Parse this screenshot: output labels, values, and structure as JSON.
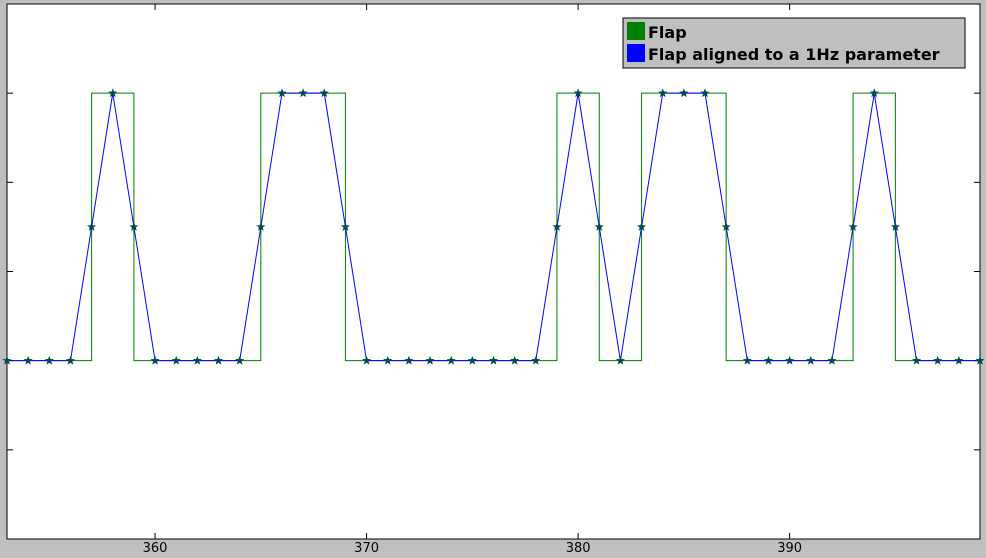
{
  "chart_data": {
    "type": "line",
    "xlim": [
      353,
      399
    ],
    "ylim": [
      -1,
      2
    ],
    "x_ticks": [
      360,
      370,
      380,
      390
    ],
    "x_tick_labels": [
      "360",
      "370",
      "380",
      "390"
    ],
    "y_ticks": [
      -1,
      -0.5,
      0,
      0.5,
      1,
      1.5,
      2
    ],
    "grid": false,
    "legend_position": "top-right",
    "series": [
      {
        "name": "Flap",
        "color": "#008000",
        "style": "step",
        "x": [
          353,
          357,
          357,
          359,
          359,
          365,
          365,
          369,
          369,
          379,
          379,
          381,
          381,
          383,
          383,
          387,
          387,
          393,
          393,
          395,
          395,
          399
        ],
        "y": [
          0,
          0,
          1.5,
          1.5,
          0,
          0,
          1.5,
          1.5,
          0,
          0,
          1.5,
          1.5,
          0,
          0,
          1.5,
          1.5,
          0,
          0,
          1.5,
          1.5,
          0,
          0
        ]
      },
      {
        "name": "Flap aligned to a 1Hz parameter",
        "color": "#0000ff",
        "style": "line-star",
        "x": [
          353,
          354,
          355,
          356,
          357,
          358,
          359,
          360,
          361,
          362,
          363,
          364,
          365,
          366,
          367,
          368,
          369,
          370,
          371,
          372,
          373,
          374,
          375,
          376,
          377,
          378,
          379,
          380,
          381,
          382,
          383,
          384,
          385,
          386,
          387,
          388,
          389,
          390,
          391,
          392,
          393,
          394,
          395,
          396,
          397,
          398,
          399
        ],
        "y": [
          0,
          0,
          0,
          0,
          0.75,
          1.5,
          0.75,
          0,
          0,
          0,
          0,
          0,
          0.75,
          1.5,
          1.5,
          1.5,
          0.75,
          0,
          0,
          0,
          0,
          0,
          0,
          0,
          0,
          0,
          0.75,
          1.5,
          0.75,
          0,
          0.75,
          1.5,
          1.5,
          1.5,
          0.75,
          0,
          0,
          0,
          0,
          0,
          0.75,
          1.5,
          0.75,
          0,
          0,
          0,
          0
        ]
      }
    ]
  }
}
